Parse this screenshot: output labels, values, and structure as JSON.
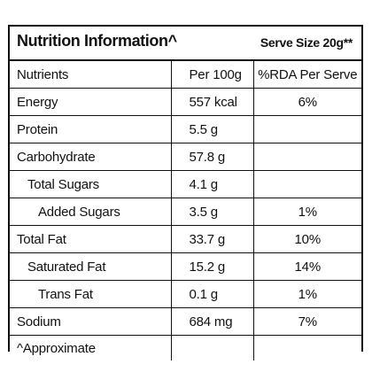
{
  "header": {
    "title": "Nutrition Information^",
    "serve_size": "Serve Size 20g**"
  },
  "columns": [
    "Nutrients",
    "Per 100g",
    "%RDA Per Serve"
  ],
  "rows": [
    {
      "nutrient": "Energy",
      "per100g": "557 kcal",
      "rda": "6%"
    },
    {
      "nutrient": "Protein",
      "per100g": "5.5 g",
      "rda": ""
    },
    {
      "nutrient": "Carbohydrate",
      "per100g": "57.8 g",
      "rda": ""
    },
    {
      "nutrient": "Total Sugars",
      "per100g": "4.1 g",
      "rda": ""
    },
    {
      "nutrient": "Added Sugars",
      "per100g": "3.5 g",
      "rda": "1%"
    },
    {
      "nutrient": "Total Fat",
      "per100g": "33.7 g",
      "rda": "10%"
    },
    {
      "nutrient": "Saturated Fat",
      "per100g": "15.2 g",
      "rda": "14%"
    },
    {
      "nutrient": "Trans Fat",
      "per100g": "0.1 g",
      "rda": "1%"
    },
    {
      "nutrient": "Sodium",
      "per100g": "684 mg",
      "rda": "7%"
    }
  ],
  "footnote": "^Approximate"
}
